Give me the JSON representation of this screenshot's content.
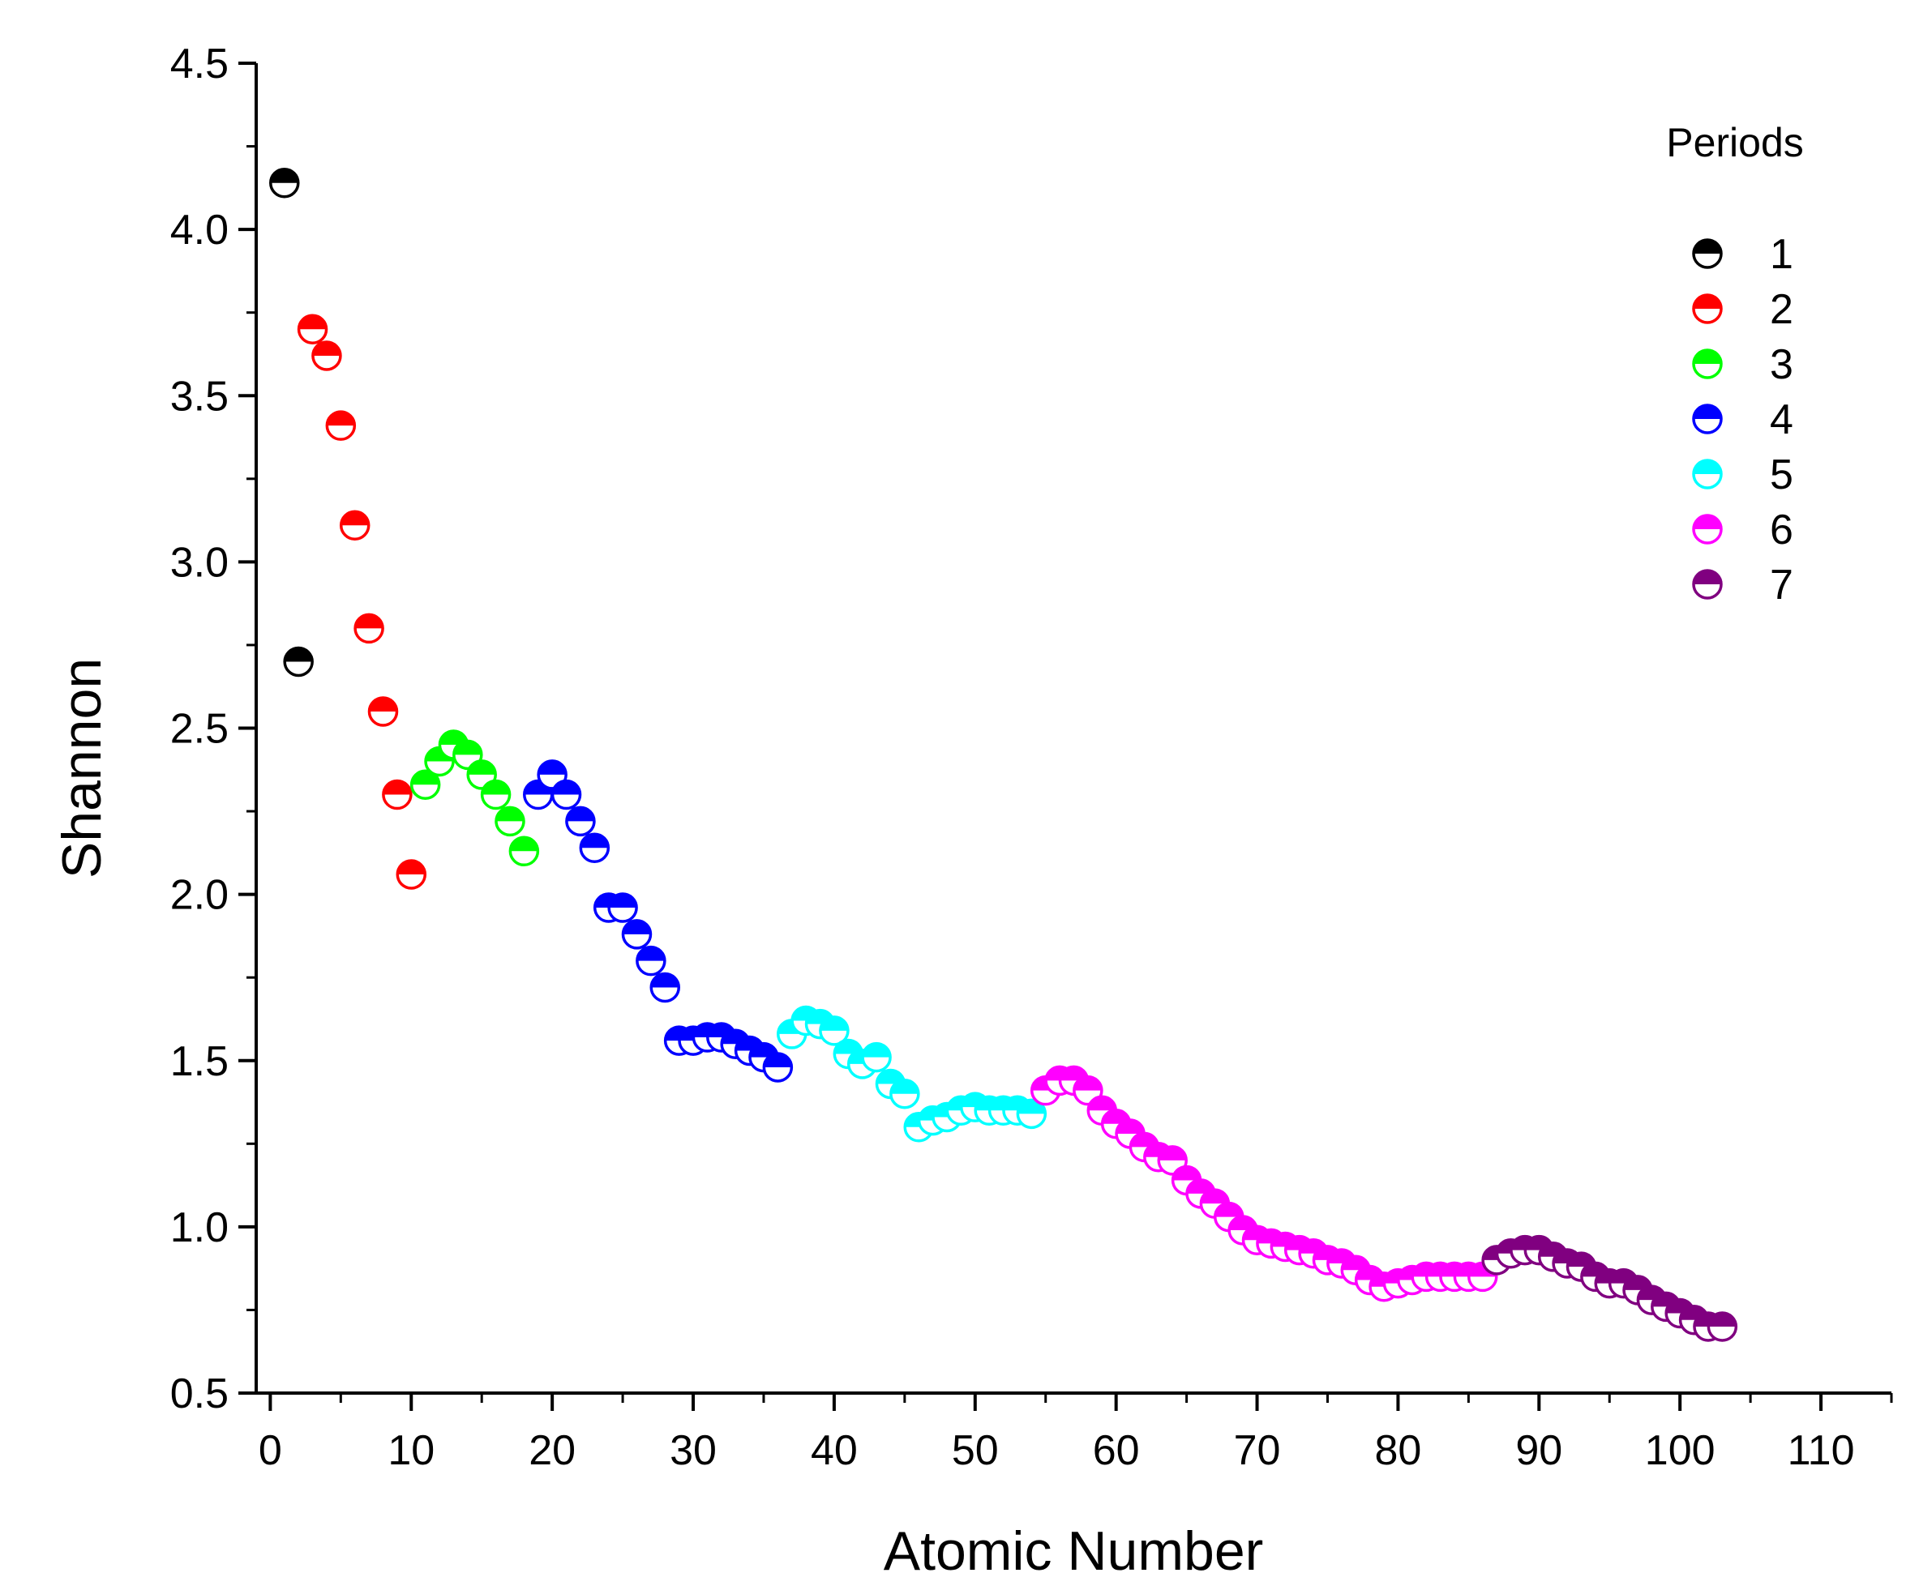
{
  "chart_data": {
    "type": "scatter",
    "xlabel": "Atomic Number",
    "ylabel": "Shannon",
    "xlim": [
      -1,
      115
    ],
    "ylim": [
      0.5,
      4.5
    ],
    "xticks": [
      "0",
      "10",
      "20",
      "30",
      "40",
      "50",
      "60",
      "70",
      "80",
      "90",
      "100",
      "110"
    ],
    "yticks": [
      "0.5",
      "1.0",
      "1.5",
      "2.0",
      "2.5",
      "3.0",
      "3.5",
      "4.0",
      "4.5"
    ],
    "grid": false,
    "legend": {
      "title": "Periods",
      "position": "top-right"
    },
    "series": [
      {
        "name": "1",
        "color": "#000000",
        "x": [
          1,
          2
        ],
        "y": [
          4.14,
          2.7
        ]
      },
      {
        "name": "2",
        "color": "#ff0000",
        "x": [
          3,
          4,
          5,
          6,
          7,
          8,
          9,
          10
        ],
        "y": [
          3.7,
          3.62,
          3.41,
          3.11,
          2.8,
          2.55,
          2.3,
          2.06
        ]
      },
      {
        "name": "3",
        "color": "#00ff00",
        "x": [
          11,
          12,
          13,
          14,
          15,
          16,
          17,
          18
        ],
        "y": [
          2.33,
          2.4,
          2.45,
          2.42,
          2.36,
          2.3,
          2.22,
          2.13
        ]
      },
      {
        "name": "4",
        "color": "#0000ff",
        "x": [
          19,
          20,
          21,
          22,
          23,
          24,
          25,
          26,
          27,
          28,
          29,
          30,
          31,
          32,
          33,
          34,
          35,
          36
        ],
        "y": [
          2.3,
          2.36,
          2.3,
          2.22,
          2.14,
          1.96,
          1.96,
          1.88,
          1.8,
          1.72,
          1.56,
          1.56,
          1.57,
          1.57,
          1.55,
          1.53,
          1.51,
          1.48
        ]
      },
      {
        "name": "5",
        "color": "#00ffff",
        "x": [
          37,
          38,
          39,
          40,
          41,
          42,
          43,
          44,
          45,
          46,
          47,
          48,
          49,
          50,
          51,
          52,
          53,
          54
        ],
        "y": [
          1.58,
          1.62,
          1.61,
          1.59,
          1.52,
          1.49,
          1.51,
          1.43,
          1.4,
          1.3,
          1.32,
          1.33,
          1.35,
          1.36,
          1.35,
          1.35,
          1.35,
          1.34
        ]
      },
      {
        "name": "6",
        "color": "#ff00ff",
        "x": [
          55,
          56,
          57,
          58,
          59,
          60,
          61,
          62,
          63,
          64,
          65,
          66,
          67,
          68,
          69,
          70,
          71,
          72,
          73,
          74,
          75,
          76,
          77,
          78,
          79,
          80,
          81,
          82,
          83,
          84,
          85,
          86
        ],
        "y": [
          1.41,
          1.44,
          1.44,
          1.41,
          1.35,
          1.31,
          1.28,
          1.24,
          1.21,
          1.2,
          1.14,
          1.1,
          1.07,
          1.03,
          0.99,
          0.96,
          0.95,
          0.94,
          0.93,
          0.92,
          0.9,
          0.89,
          0.87,
          0.84,
          0.82,
          0.83,
          0.84,
          0.85,
          0.85,
          0.85,
          0.85,
          0.85
        ]
      },
      {
        "name": "7",
        "color": "#800080",
        "x": [
          87,
          88,
          89,
          90,
          91,
          92,
          93,
          94,
          95,
          96,
          97,
          98,
          99,
          100,
          101,
          102,
          103
        ],
        "y": [
          0.9,
          0.92,
          0.93,
          0.93,
          0.91,
          0.89,
          0.88,
          0.85,
          0.83,
          0.83,
          0.81,
          0.78,
          0.76,
          0.74,
          0.72,
          0.7,
          0.7
        ]
      }
    ]
  }
}
